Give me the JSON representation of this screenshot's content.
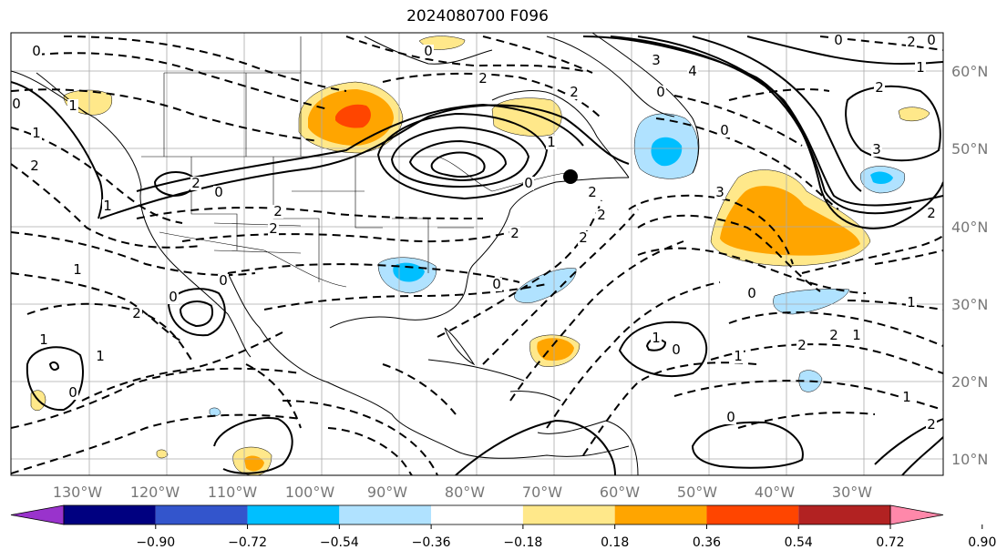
{
  "title": "2024080700 F096",
  "map": {
    "lon_labels": [
      "130°W",
      "120°W",
      "110°W",
      "100°W",
      "90°W",
      "80°W",
      "70°W",
      "60°W",
      "50°W",
      "40°W",
      "30°W"
    ],
    "lat_labels": [
      "60°N",
      "50°N",
      "40°N",
      "30°N",
      "20°N",
      "10°N"
    ],
    "contour_labels": [
      "0",
      "0",
      "1",
      "2",
      "1",
      "2",
      "0",
      "2",
      "2",
      "0",
      "1",
      "0",
      "2",
      "2",
      "3",
      "4",
      "2",
      "2",
      "0",
      "0",
      "1",
      "0",
      "2",
      "3",
      "2",
      "1",
      "1",
      "0",
      "0",
      "1",
      "1",
      "0",
      "2",
      "0",
      "0",
      "1",
      "2",
      "2",
      "2",
      "1",
      "2",
      "1",
      "1",
      "0",
      "0",
      "0",
      "3",
      "2",
      "1",
      "2"
    ]
  },
  "colorbar": {
    "ticks": [
      "−0.90",
      "−0.72",
      "−0.54",
      "−0.36",
      "−0.18",
      "0.18",
      "0.36",
      "0.54",
      "0.72",
      "0.90"
    ],
    "colors": [
      "#9933cc",
      "#000080",
      "#3355cc",
      "#00bfff",
      "#b0e2ff",
      "#ffffff",
      "#ffe88a",
      "#ffa500",
      "#ff4500",
      "#b22222",
      "#ff88aa"
    ]
  }
}
